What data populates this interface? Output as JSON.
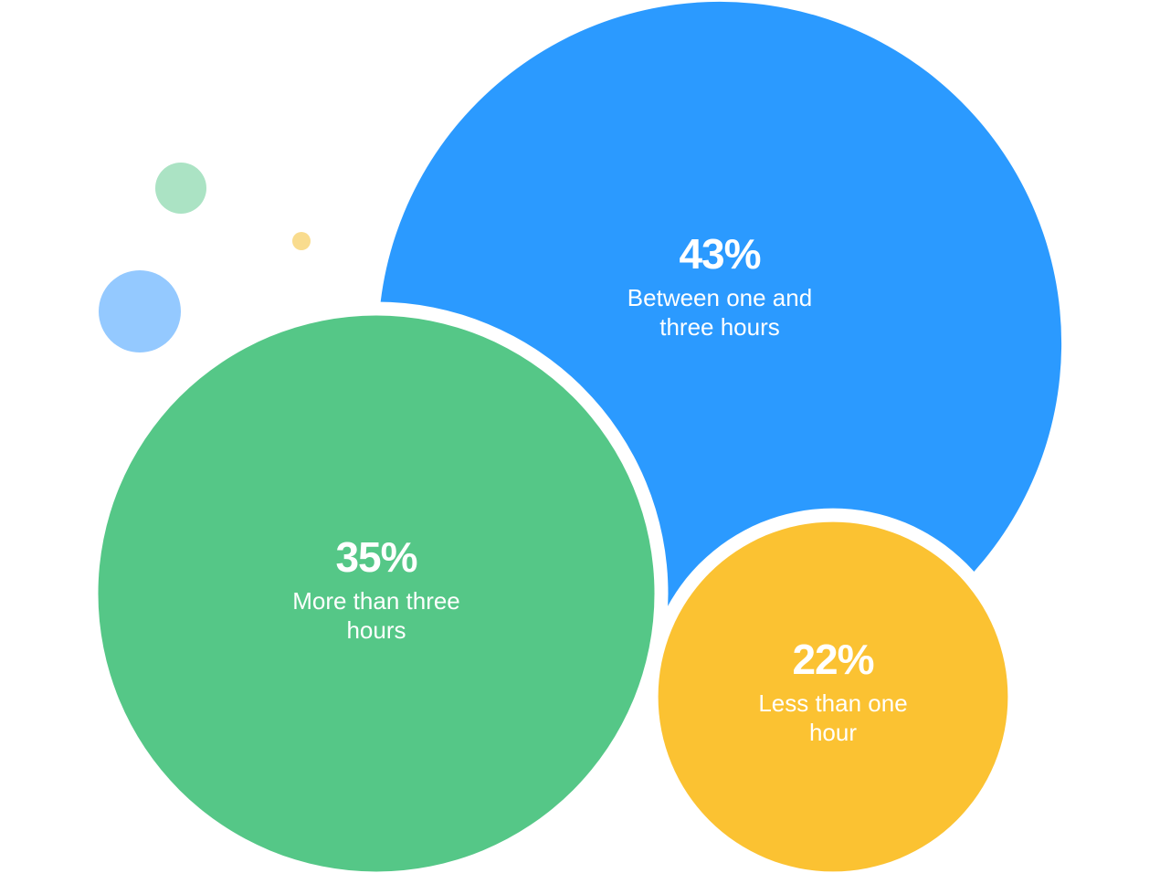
{
  "chart_data": {
    "type": "bubble",
    "categories": [
      "Between one and three hours",
      "More than three hours",
      "Less than one hour"
    ],
    "values": [
      43,
      35,
      22
    ],
    "value_labels": [
      "43%",
      "35%",
      "22%"
    ],
    "colors": [
      "#2b9aff",
      "#55c787",
      "#fbc232"
    ]
  }
}
